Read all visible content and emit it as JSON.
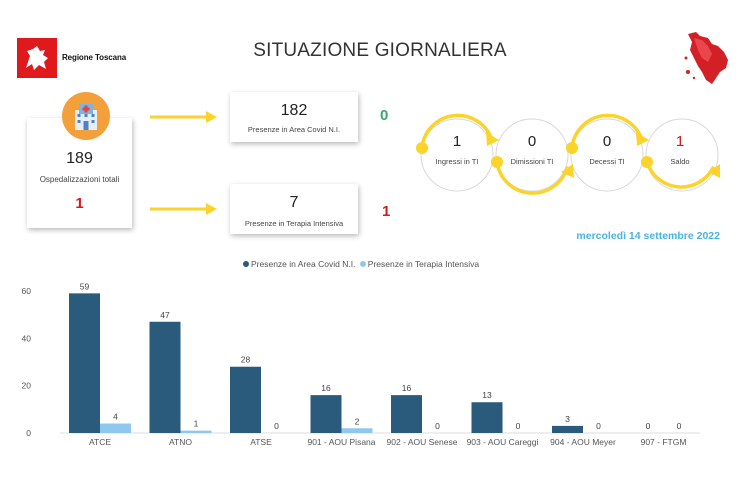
{
  "header": {
    "logo_text": "Regione Toscana",
    "title": "SITUAZIONE GIORNALIERA"
  },
  "totals": {
    "value": "189",
    "label": "Ospedalizzazioni totali",
    "delta": "1"
  },
  "area_covid": {
    "value": "182",
    "label": "Presenze in Area Covid N.I.",
    "delta": "0"
  },
  "terapia_intensiva": {
    "value": "7",
    "label": "Presenze in Terapia Intensiva",
    "delta": "1"
  },
  "flow": {
    "ingressi": {
      "value": "1",
      "label": "Ingressi in TI"
    },
    "dimissioni": {
      "value": "0",
      "label": "Dimissioni TI"
    },
    "decessi": {
      "value": "0",
      "label": "Decessi TI"
    },
    "saldo": {
      "value": "1",
      "label": "Saldo"
    }
  },
  "date": "mercoledì 14 settembre 2022",
  "colors": {
    "dark_blue": "#2a5a7c",
    "light_blue": "#8ec8ee",
    "arrow_yellow": "#fbd32a",
    "red": "#d7191c",
    "green": "#3aa76d",
    "date_blue": "#48b4e0"
  },
  "icons": [
    "hospital-icon",
    "arrow-right-icon",
    "tuscany-map-icon",
    "regione-toscana-logo"
  ],
  "chart_data": {
    "type": "bar",
    "categories": [
      "ATCE",
      "ATNO",
      "ATSE",
      "901 - AOU Pisana",
      "902 - AOU Senese",
      "903 - AOU Careggi",
      "904 - AOU Meyer",
      "907 - FTGM"
    ],
    "series": [
      {
        "name": "Presenze in Area Covid N.I.",
        "values": [
          59,
          47,
          28,
          16,
          16,
          13,
          3,
          0
        ]
      },
      {
        "name": "Presenze in Terapia Intensiva",
        "values": [
          4,
          1,
          0,
          2,
          0,
          0,
          0,
          0
        ]
      }
    ],
    "yticks": [
      "0",
      "20",
      "40",
      "60"
    ],
    "ylim": [
      0,
      60
    ],
    "legend_position": "top-center",
    "xlabel": "",
    "ylabel": ""
  }
}
